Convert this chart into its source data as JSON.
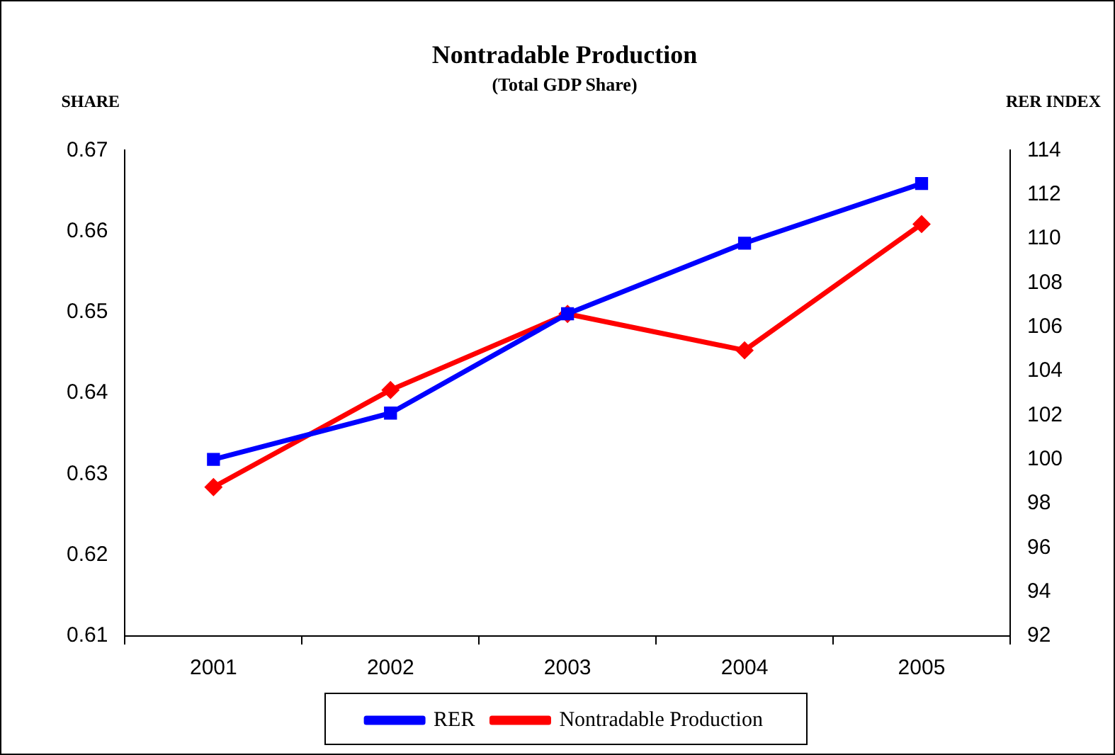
{
  "chart_data": {
    "type": "line",
    "title": "Nontradable Production",
    "subtitle": "(Total GDP Share)",
    "ylabel": "SHARE",
    "y2label": "RER INDEX",
    "categories": [
      "2001",
      "2002",
      "2003",
      "2004",
      "2005"
    ],
    "series": [
      {
        "name": "Nontradable Production",
        "color": "#ff0000",
        "marker": "diamond",
        "values": [
          0.6284,
          0.6404,
          0.6498,
          0.6453,
          0.6609
        ]
      },
      {
        "name": "RER",
        "color": "#0000ff",
        "marker": "square",
        "axis": "y2",
        "values": [
          100.0,
          102.1,
          106.6,
          109.8,
          112.5
        ]
      }
    ],
    "ylim": [
      0.61,
      0.67
    ],
    "yticks": [
      0.61,
      0.62,
      0.63,
      0.64,
      0.65,
      0.66,
      0.67
    ],
    "y2lim": [
      92,
      114
    ],
    "y2ticks": [
      92,
      94,
      96,
      98,
      100,
      102,
      104,
      106,
      108,
      110,
      112,
      114
    ],
    "grid": false,
    "legend": "bottom",
    "line_style": "solid"
  }
}
